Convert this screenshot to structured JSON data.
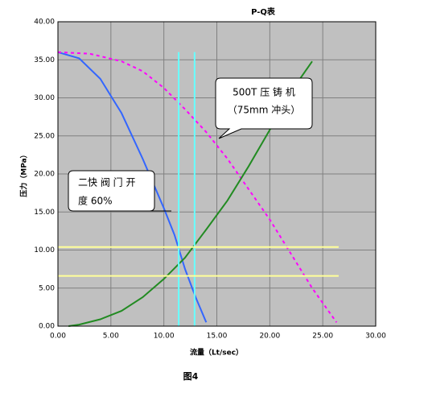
{
  "chart_data": {
    "type": "line",
    "title": "P-Q表",
    "x_label": "流量（Lt/sec）",
    "y_label": "压力（MPa）",
    "caption": "图4",
    "xlim": [
      0,
      30
    ],
    "ylim": [
      0,
      40
    ],
    "grid": true,
    "xticks": [
      {
        "value": 0,
        "label": "0.00"
      },
      {
        "value": 5,
        "label": "5.00"
      },
      {
        "value": 10,
        "label": "10.00"
      },
      {
        "value": 15,
        "label": "15.00"
      },
      {
        "value": 20,
        "label": "20.00"
      },
      {
        "value": 25,
        "label": "25.00"
      },
      {
        "value": 30,
        "label": "30.00"
      }
    ],
    "yticks": [
      {
        "value": 0,
        "label": "0.00"
      },
      {
        "value": 5,
        "label": "5.00"
      },
      {
        "value": 10,
        "label": "10.00"
      },
      {
        "value": 15,
        "label": "15.00"
      },
      {
        "value": 20,
        "label": "20.00"
      },
      {
        "value": 25,
        "label": "25.00"
      },
      {
        "value": 30,
        "label": "30.00"
      },
      {
        "value": 35,
        "label": "35.00"
      },
      {
        "value": 40,
        "label": "40.00"
      }
    ],
    "series": [
      {
        "color": "#3366ff",
        "dashed": false,
        "x": [
          0,
          2,
          4,
          6,
          8,
          10,
          11,
          12,
          13,
          14
        ],
        "values": [
          36,
          35.2,
          32.5,
          28,
          22,
          15.5,
          12,
          7.5,
          3.8,
          0.5
        ]
      },
      {
        "color": "#ff00ff",
        "dashed": true,
        "x": [
          0,
          3,
          6,
          8,
          10,
          12,
          14,
          16,
          18,
          20,
          22,
          24,
          26.3
        ],
        "values": [
          36,
          35.8,
          34.8,
          33.5,
          31.3,
          28.5,
          25.5,
          22,
          18,
          14,
          9.5,
          5,
          0.5
        ]
      },
      {
        "color": "#228b22",
        "dashed": false,
        "x": [
          1,
          2,
          4,
          6,
          8,
          10,
          12,
          14,
          16,
          18,
          20,
          22,
          24
        ],
        "values": [
          0,
          0.2,
          0.9,
          2,
          3.8,
          6.2,
          9,
          12.7,
          16.5,
          21,
          25.8,
          30.8,
          34.8
        ]
      },
      {
        "color": "#66ffff",
        "dashed": false,
        "x": [
          11.4,
          11.4
        ],
        "values": [
          36,
          0
        ]
      },
      {
        "color": "#66ffff",
        "dashed": false,
        "x": [
          12.9,
          12.9
        ],
        "values": [
          36,
          0
        ]
      },
      {
        "color": "#ffff99",
        "dashed": false,
        "x": [
          0,
          26.5
        ],
        "values": [
          10.4,
          10.4
        ]
      },
      {
        "color": "#ffff99",
        "dashed": false,
        "x": [
          0,
          26.5
        ],
        "values": [
          6.6,
          6.6
        ]
      }
    ],
    "annotations": [
      {
        "lines": [
          "500T  压 铸 机",
          "（75mm 冲头）"
        ]
      },
      {
        "lines": [
          "二快 阀 门 开",
          "度 60%"
        ]
      }
    ]
  }
}
